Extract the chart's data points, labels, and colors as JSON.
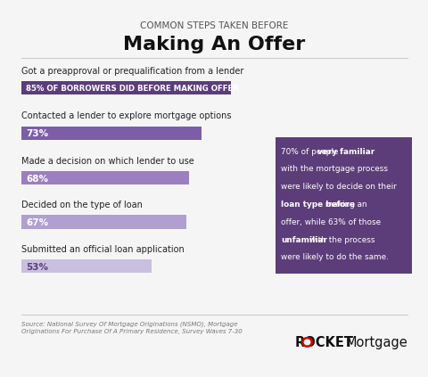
{
  "title_top": "COMMON STEPS TAKEN BEFORE",
  "title_main": "Making An Offer",
  "background_color": "#f5f5f5",
  "bars": [
    {
      "label": "Got a preapproval or prequalification from a lender",
      "sublabel": "85% OF BORROWERS DID BEFORE MAKING OFFER",
      "value": 85,
      "bar_color": "#5c3d7a",
      "text_color": "#ffffff",
      "is_special": true
    },
    {
      "label": "Contacted a lender to explore mortgage options",
      "sublabel": "73%",
      "value": 73,
      "bar_color": "#7b5ea7",
      "text_color": "#ffffff",
      "is_special": false
    },
    {
      "label": "Made a decision on which lender to use",
      "sublabel": "68%",
      "value": 68,
      "bar_color": "#9b7fc0",
      "text_color": "#ffffff",
      "is_special": false
    },
    {
      "label": "Decided on the type of loan",
      "sublabel": "67%",
      "value": 67,
      "bar_color": "#b09fd0",
      "text_color": "#ffffff",
      "is_special": false
    },
    {
      "label": "Submitted an official loan application",
      "sublabel": "53%",
      "value": 53,
      "bar_color": "#c9bfe0",
      "text_color": "#5c3d7a",
      "is_special": false
    }
  ],
  "callout_lines": [
    [
      [
        "70% of people ",
        false
      ],
      [
        "very familiar",
        true
      ]
    ],
    [
      [
        "with the mortgage process",
        false
      ]
    ],
    [
      [
        "were likely to decide on their",
        false
      ]
    ],
    [
      [
        "loan type before",
        true
      ],
      [
        " making an",
        false
      ]
    ],
    [
      [
        "offer, while 63% of those",
        false
      ]
    ],
    [
      [
        "unfamiliar",
        true
      ],
      [
        " with the process",
        false
      ]
    ],
    [
      [
        "were likely to do the same.",
        false
      ]
    ]
  ],
  "callout_bg_color": "#5c3d7a",
  "callout_text_color": "#ffffff",
  "source_text": "Source: National Survey Of Mortgage Originations (NSMO), Mortgage\nOriginations For Purchase Of A Primary Residence, Survey Waves 7-30",
  "logo_rocket": "ROCKET",
  "logo_mortgage": "Mortgage",
  "title_top_color": "#555555",
  "title_main_color": "#111111",
  "label_color": "#222222",
  "divider_color": "#cccccc",
  "source_color": "#777777"
}
